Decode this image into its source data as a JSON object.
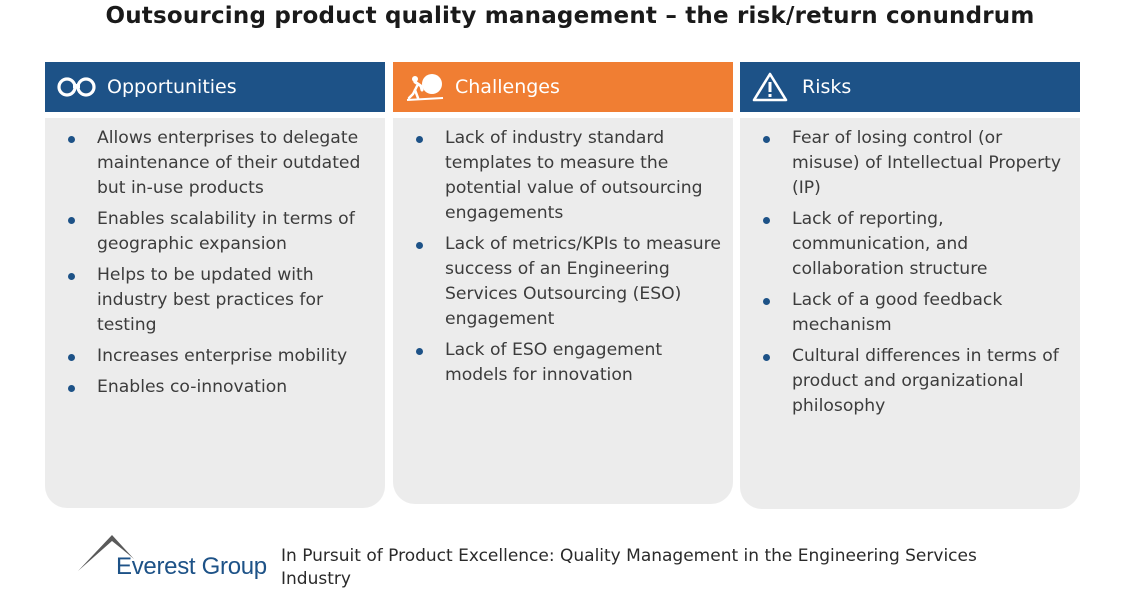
{
  "title": "Outsourcing product quality management – the risk/return conundrum",
  "columns": [
    {
      "heading": "Opportunities",
      "icon": "binoculars-icon",
      "color": "#1d5287",
      "items": [
        "Allows enterprises to delegate maintenance of their outdated but in-use products",
        "Enables scalability in terms of geographic expansion",
        "Helps to be updated with industry best practices for testing",
        "Increases enterprise mobility",
        "Enables co-innovation"
      ]
    },
    {
      "heading": "Challenges",
      "icon": "pushing-boulder-icon",
      "color": "#f07e33",
      "items": [
        "Lack of industry standard templates to measure the potential value of outsourcing engagements",
        "Lack of metrics/KPIs to measure success of an Engineering Services Outsourcing (ESO) engagement",
        "Lack of ESO engagement models for innovation"
      ]
    },
    {
      "heading": "Risks",
      "icon": "warning-triangle-icon",
      "color": "#1d5287",
      "items": [
        "Fear of losing control (or misuse) of Intellectual Property (IP)",
        "Lack of reporting, communication, and collaboration structure",
        "Lack of a good feedback mechanism",
        "Cultural differences in terms of product and organizational philosophy"
      ]
    }
  ],
  "footer": {
    "logo_text": "Everest Group",
    "report_title": "In Pursuit of Product Excellence: Quality Management in the Engineering Services Industry"
  }
}
